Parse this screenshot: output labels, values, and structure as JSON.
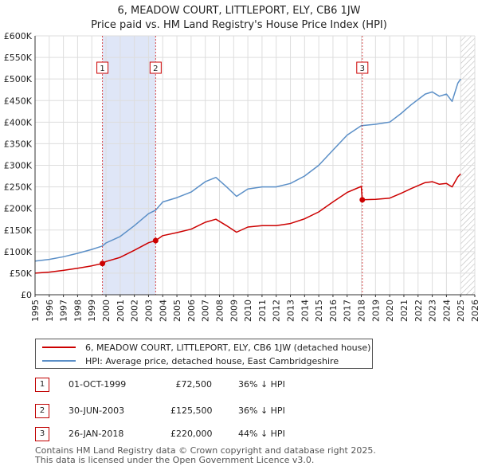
{
  "title_line1": "6, MEADOW COURT, LITTLEPORT, ELY, CB6 1JW",
  "title_line2": "Price paid vs. HM Land Registry's House Price Index (HPI)",
  "legend": {
    "property_label": "6, MEADOW COURT, LITTLEPORT, ELY, CB6 1JW (detached house)",
    "hpi_label": "HPI: Average price, detached house, East Cambridgeshire"
  },
  "transactions": [
    {
      "num": "1",
      "date": "01-OCT-1999",
      "price": "£72,500",
      "diff": "36% ↓ HPI"
    },
    {
      "num": "2",
      "date": "30-JUN-2003",
      "price": "£125,500",
      "diff": "36% ↓ HPI"
    },
    {
      "num": "3",
      "date": "26-JAN-2018",
      "price": "£220,000",
      "diff": "44% ↓ HPI"
    }
  ],
  "footer": {
    "line1": "Contains HM Land Registry data © Crown copyright and database right 2025.",
    "line2": "This data is licensed under the Open Government Licence v3.0."
  },
  "colors": {
    "property": "#cc0000",
    "hpi": "#5b8fc7",
    "shade": "#dfe6f7",
    "hatch": "#bbbbbb",
    "grid": "#dddddd"
  },
  "chart_data": {
    "type": "line",
    "title": "6, MEADOW COURT, LITTLEPORT, ELY, CB6 1JW — Price paid vs. HM Land Registry's House Price Index (HPI)",
    "xlabel": "",
    "ylabel": "",
    "xlim": [
      1995,
      2026
    ],
    "ylim": [
      0,
      600000
    ],
    "x_ticks": [
      1995,
      1996,
      1997,
      1998,
      1999,
      2000,
      2001,
      2002,
      2003,
      2004,
      2005,
      2006,
      2007,
      2008,
      2009,
      2010,
      2011,
      2012,
      2013,
      2014,
      2015,
      2016,
      2017,
      2018,
      2019,
      2020,
      2021,
      2022,
      2023,
      2024,
      2025,
      2026
    ],
    "y_ticks": [
      0,
      50000,
      100000,
      150000,
      200000,
      250000,
      300000,
      350000,
      400000,
      450000,
      500000,
      550000,
      600000
    ],
    "y_tick_labels": [
      "£0",
      "£50K",
      "£100K",
      "£150K",
      "£200K",
      "£250K",
      "£300K",
      "£350K",
      "£400K",
      "£450K",
      "£500K",
      "£550K",
      "£600K"
    ],
    "shaded_ranges": [
      [
        1999.75,
        2003.5
      ]
    ],
    "hatched_range": [
      2025.0,
      2026.0
    ],
    "sales": [
      {
        "label": "1",
        "x": 1999.75,
        "y": 72500
      },
      {
        "label": "2",
        "x": 2003.5,
        "y": 125500
      },
      {
        "label": "3",
        "x": 2018.07,
        "y": 220000
      }
    ],
    "series": [
      {
        "name": "HPI: Average price, detached house, East Cambridgeshire",
        "x": [
          1995,
          1996,
          1997,
          1998,
          1999,
          1999.75,
          2000,
          2001,
          2002,
          2003,
          2003.5,
          2004,
          2005,
          2006,
          2007,
          2007.75,
          2008.5,
          2009.2,
          2010,
          2011,
          2012,
          2013,
          2014,
          2015,
          2016,
          2017,
          2018,
          2019,
          2020,
          2020.8,
          2021.5,
          2022.5,
          2023,
          2023.5,
          2024,
          2024.4,
          2024.8,
          2025.0
        ],
        "values": [
          78000,
          82000,
          88000,
          96000,
          105000,
          113000,
          120000,
          135000,
          160000,
          188000,
          196000,
          215000,
          225000,
          238000,
          262000,
          272000,
          250000,
          228000,
          245000,
          250000,
          250000,
          258000,
          275000,
          300000,
          335000,
          370000,
          392000,
          395000,
          400000,
          420000,
          440000,
          465000,
          470000,
          460000,
          465000,
          448000,
          490000,
          500000
        ]
      },
      {
        "name": "6, MEADOW COURT, LITTLEPORT, ELY, CB6 1JW (detached house)",
        "x": [
          1995,
          1996,
          1997,
          1998,
          1999,
          1999.75,
          2000,
          2001,
          2002,
          2003,
          2003.5,
          2004,
          2005,
          2006,
          2007,
          2007.75,
          2008.5,
          2009.2,
          2010,
          2011,
          2012,
          2013,
          2014,
          2015,
          2016,
          2017,
          2018.0,
          2018.07,
          2019,
          2020,
          2020.8,
          2021.5,
          2022.5,
          2023,
          2023.5,
          2024,
          2024.4,
          2024.8,
          2025.0
        ],
        "values": [
          50000,
          52500,
          56500,
          61500,
          67000,
          72500,
          77000,
          86500,
          103000,
          120500,
          125500,
          137000,
          144000,
          152000,
          168000,
          175000,
          160000,
          145000,
          157000,
          160000,
          160000,
          165000,
          176000,
          192000,
          215000,
          237000,
          251000,
          220000,
          221000,
          224000,
          235000,
          246000,
          260000,
          262000,
          256000,
          258000,
          250000,
          273000,
          280000
        ]
      }
    ]
  }
}
